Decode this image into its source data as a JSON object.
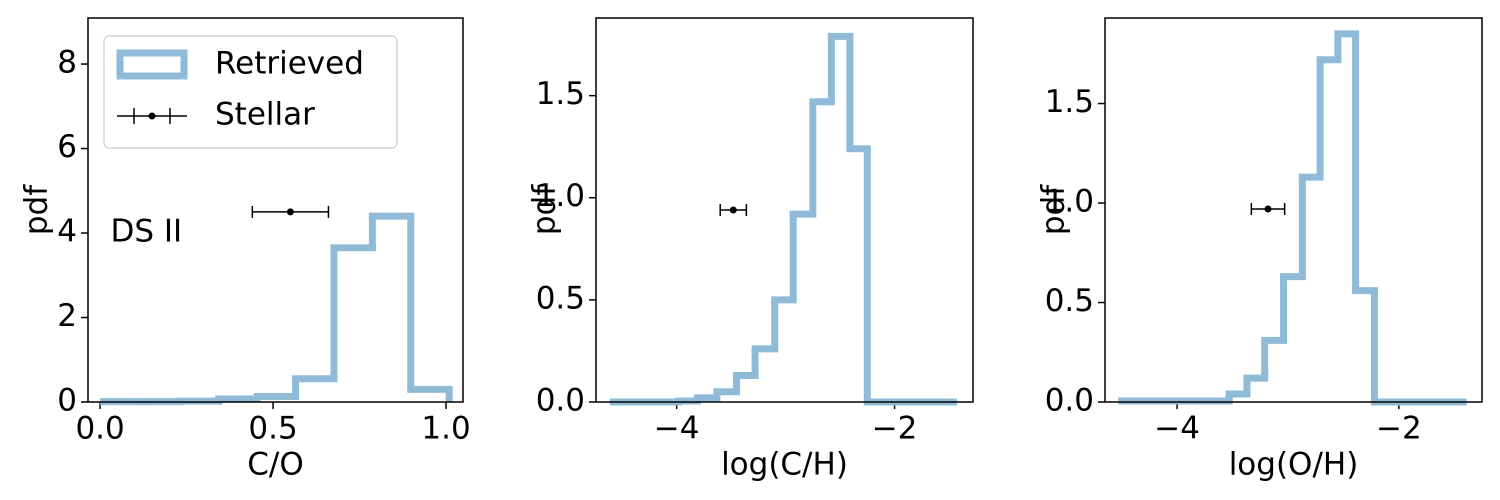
{
  "chart_data": [
    {
      "type": "step-histogram",
      "xlabel": "C/O",
      "ylabel": "pdf",
      "xlim": [
        -0.035,
        1.049
      ],
      "ylim": [
        0,
        9.09
      ],
      "xticks": [
        {
          "value": 0,
          "label": "0.0"
        },
        0.5,
        {
          "value": 1,
          "label": "1.0"
        }
      ],
      "yticks": [
        0,
        2,
        4,
        6,
        8
      ],
      "series": [
        {
          "name": "Retrieved",
          "color": "#8fbbd9",
          "bins": [
            0.01,
            0.121,
            0.232,
            0.343,
            0.454,
            0.565,
            0.676,
            0.787,
            0.898,
            1.009
          ],
          "values": [
            0.01,
            0.01,
            0.02,
            0.07,
            0.13,
            0.55,
            3.65,
            4.4,
            0.3
          ]
        }
      ],
      "stellar": {
        "name": "Stellar",
        "color": "#000000",
        "x": 0.55,
        "xerr": 0.11,
        "y": 4.5
      },
      "annotation": {
        "text": "DS II",
        "x": 0.03,
        "y": 4.0
      },
      "legend": "upper left"
    },
    {
      "type": "step-histogram",
      "xlabel": "log(C/H)",
      "ylabel": "pdf",
      "xlim": [
        -4.74,
        -1.28
      ],
      "ylim": [
        0,
        1.88
      ],
      "xticks": [
        {
          "value": -4,
          "label": "−4"
        },
        {
          "value": -2,
          "label": "−2"
        }
      ],
      "yticks": [
        {
          "value": 0,
          "label": "0.0"
        },
        0.5,
        {
          "value": 1,
          "label": "1.0"
        },
        1.5
      ],
      "series": [
        {
          "name": "Retrieved",
          "color": "#8fbbd9",
          "bins": [
            -4.58,
            -3.98,
            -3.81,
            -3.63,
            -3.45,
            -3.28,
            -3.1,
            -2.93,
            -2.75,
            -2.58,
            -2.41,
            -2.25,
            -1.46
          ],
          "values": [
            0.0,
            0.005,
            0.02,
            0.05,
            0.13,
            0.26,
            0.5,
            0.92,
            1.47,
            1.79,
            1.24,
            0.0
          ]
        }
      ],
      "stellar": {
        "name": "Stellar",
        "color": "#000000",
        "x": -3.48,
        "xerr": 0.12,
        "y": 0.94
      }
    },
    {
      "type": "step-histogram",
      "xlabel": "log(O/H)",
      "ylabel": "pdf",
      "xlim": [
        -4.65,
        -1.25
      ],
      "ylim": [
        0,
        1.93
      ],
      "xticks": [
        {
          "value": -4,
          "label": "−4"
        },
        {
          "value": -2,
          "label": "−2"
        }
      ],
      "yticks": [
        {
          "value": 0,
          "label": "0.0"
        },
        0.5,
        {
          "value": 1,
          "label": "1.0"
        },
        1.5
      ],
      "series": [
        {
          "name": "Retrieved",
          "color": "#8fbbd9",
          "bins": [
            -4.5,
            -3.53,
            -3.37,
            -3.21,
            -3.04,
            -2.87,
            -2.71,
            -2.55,
            -2.39,
            -2.22,
            -2.06,
            -1.42
          ],
          "values": [
            0.005,
            0.04,
            0.12,
            0.31,
            0.63,
            1.13,
            1.72,
            1.85,
            0.56,
            0.0,
            0.0
          ]
        }
      ],
      "stellar": {
        "name": "Stellar",
        "color": "#000000",
        "x": -3.18,
        "xerr": 0.15,
        "y": 0.97
      }
    }
  ]
}
